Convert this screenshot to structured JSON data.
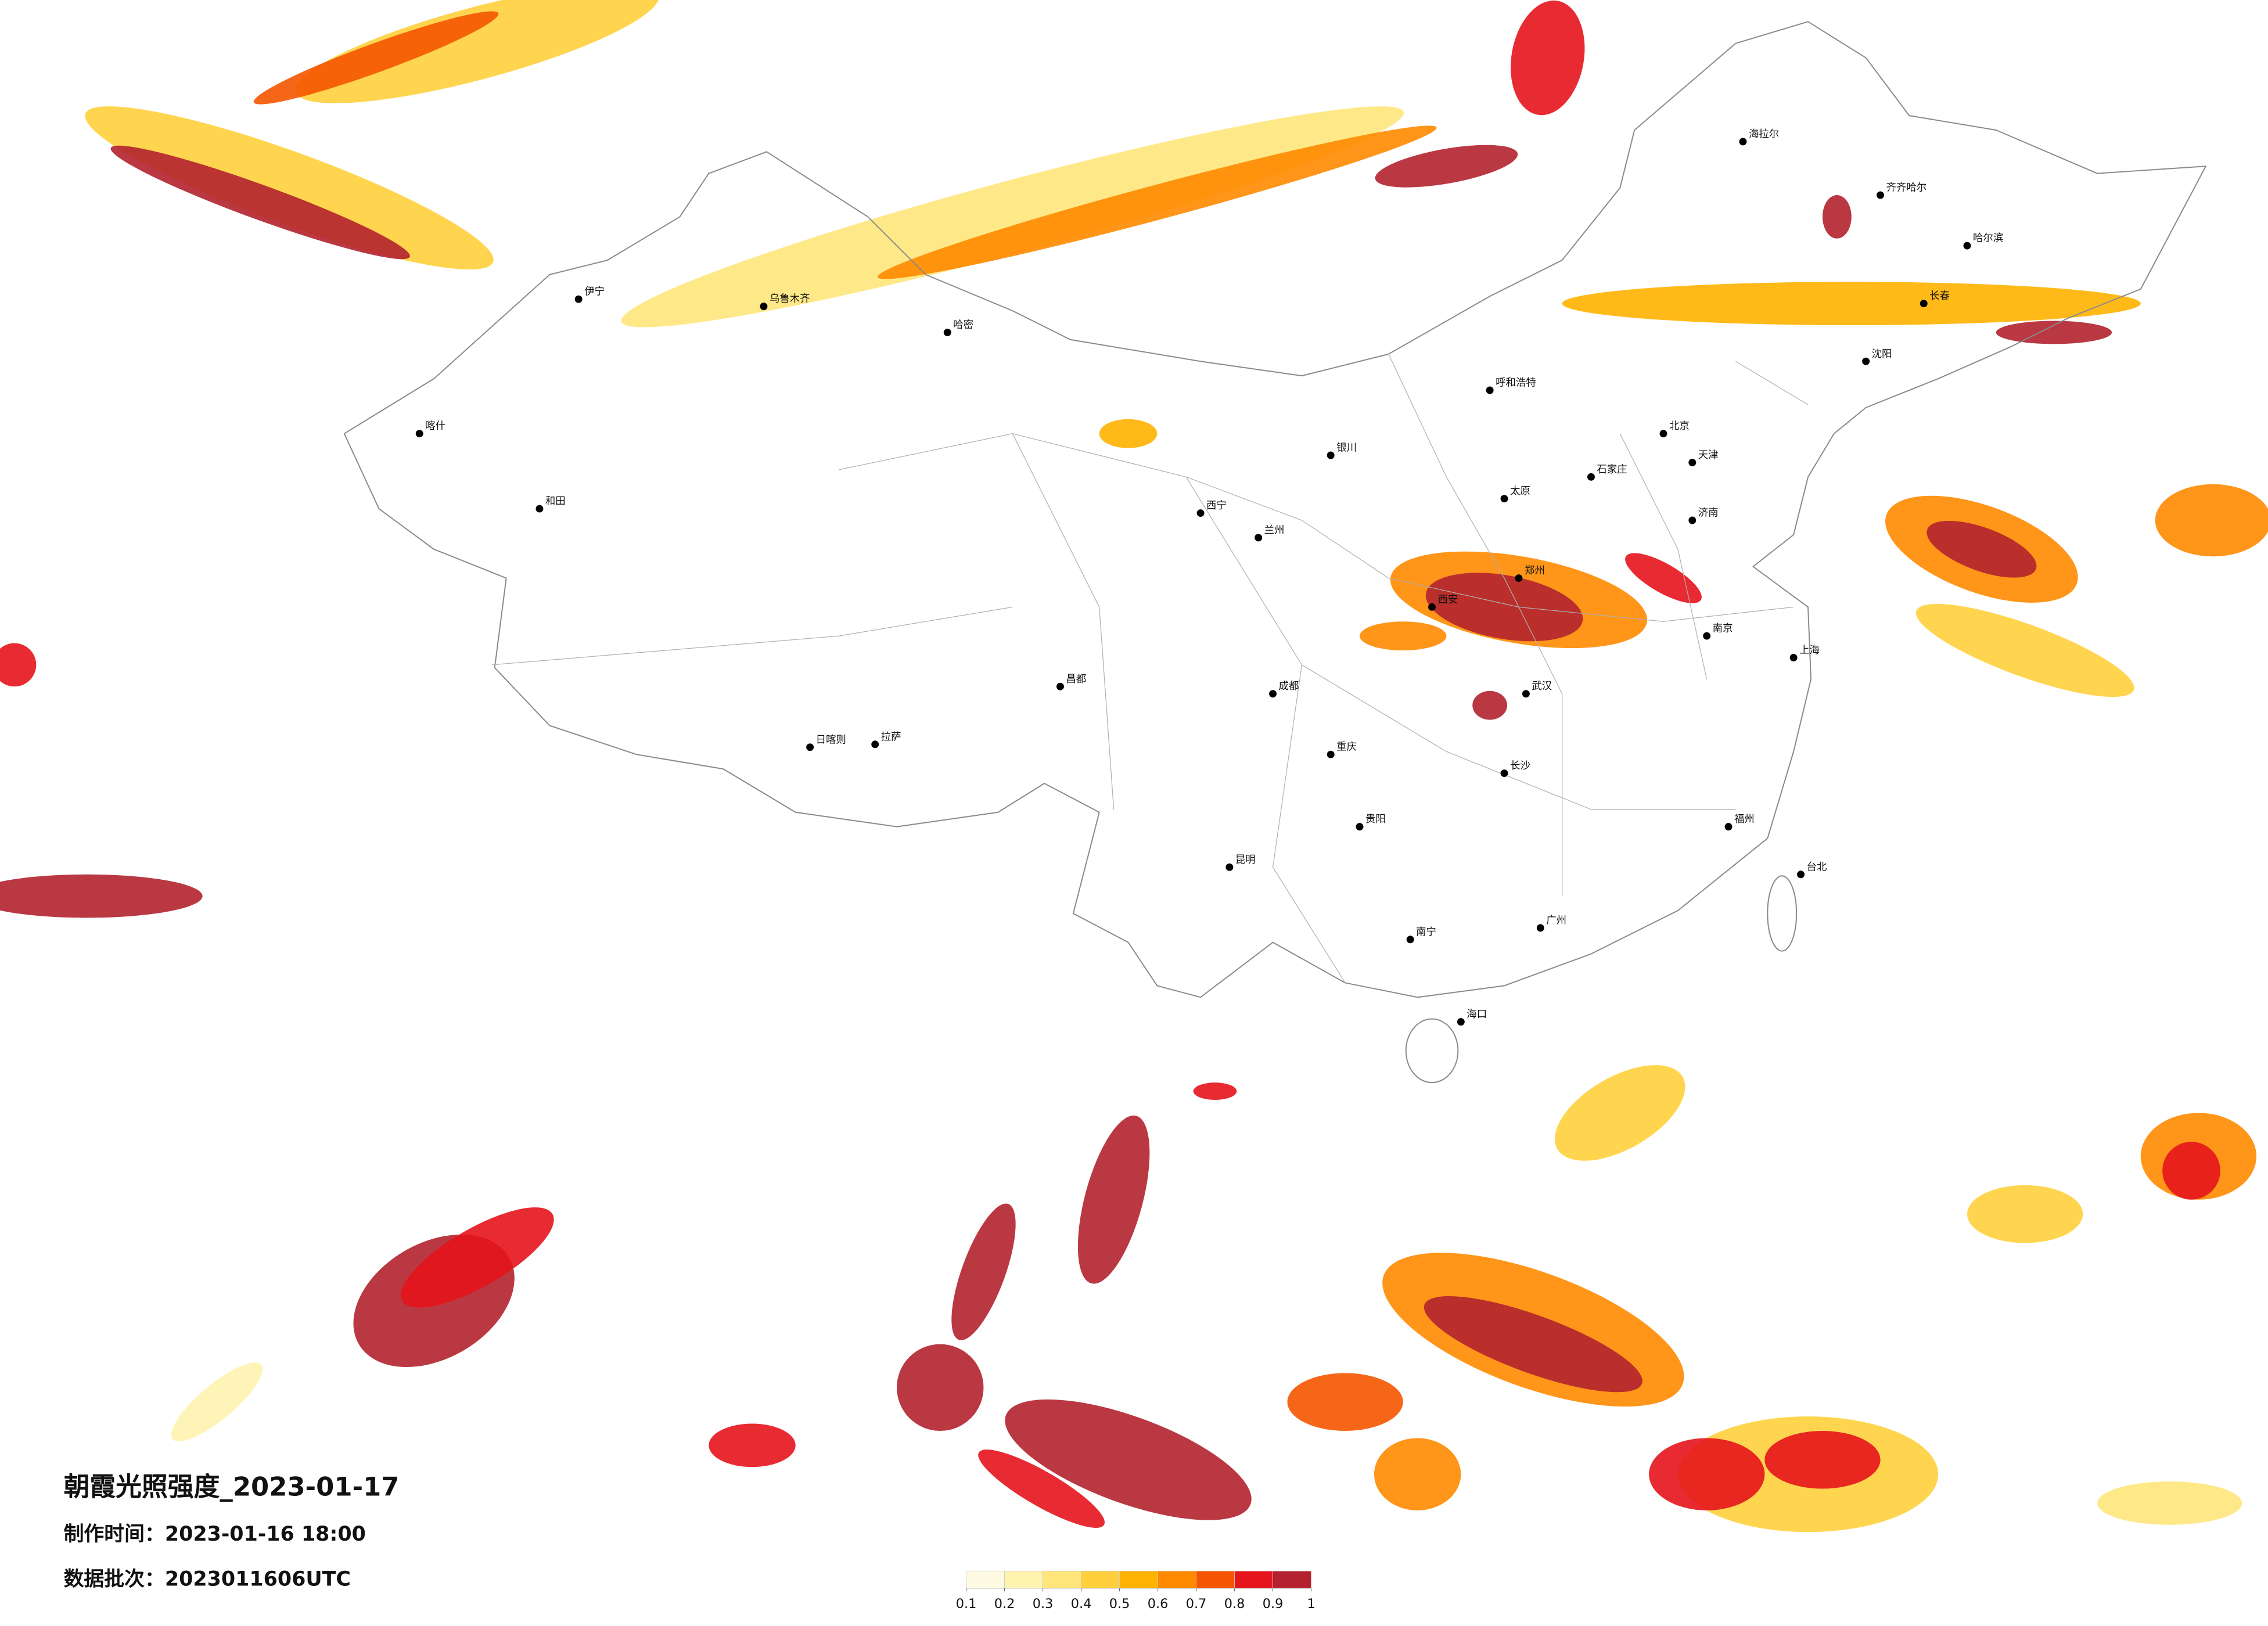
{
  "title": "朝霞光照强度_2023-01-17",
  "made_time": "制作时间：2023-01-16 18:00",
  "batch": "数据批次：2023011606UTC",
  "colorbar": {
    "ticks": [
      0.1,
      0.2,
      0.3,
      0.4,
      0.5,
      0.6,
      0.7,
      0.8,
      0.9,
      1
    ],
    "colors": [
      "#fffbe3",
      "#fff3b0",
      "#ffe57a",
      "#ffd03c",
      "#ffb300",
      "#ff8a00",
      "#f55500",
      "#e6141c",
      "#b3222e"
    ]
  },
  "cities": [
    "乌鲁木齐",
    "伊宁",
    "喀什",
    "和田",
    "哈密",
    "西宁",
    "兰州",
    "拉萨",
    "日喀则",
    "昌都",
    "成都",
    "重庆",
    "昆明",
    "贵阳",
    "南宁",
    "广州",
    "海口",
    "台北",
    "福州",
    "上海",
    "南京",
    "武汉",
    "长沙",
    "郑州",
    "西安",
    "北京",
    "天津",
    "石家庄",
    "济南",
    "太原",
    "呼和浩特",
    "沈阳",
    "长春",
    "哈尔滨",
    "齐齐哈尔",
    "银川",
    "海拉尔"
  ]
}
